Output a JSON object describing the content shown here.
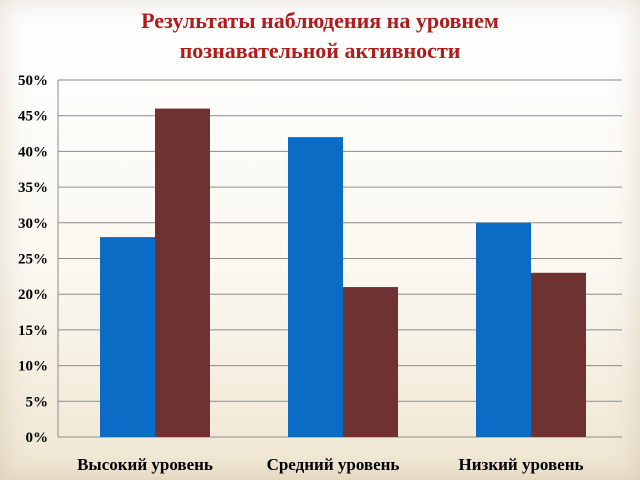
{
  "chart_data": {
    "type": "bar",
    "title": [
      "Результаты наблюдения на уровнем",
      "познавательной активности"
    ],
    "categories": [
      "Высокий уровень",
      "Средний уровень",
      "Низкий уровень"
    ],
    "series": [
      {
        "values": [
          28,
          42,
          30
        ],
        "color": "#0a6cc4"
      },
      {
        "values": [
          46,
          21,
          23
        ],
        "color": "#6e3232"
      }
    ],
    "yticks": [
      "0%",
      "5%",
      "10%",
      "15%",
      "20%",
      "25%",
      "30%",
      "35%",
      "40%",
      "45%",
      "50%"
    ],
    "ylim": [
      0,
      50
    ],
    "grid": true,
    "legend": "none"
  }
}
